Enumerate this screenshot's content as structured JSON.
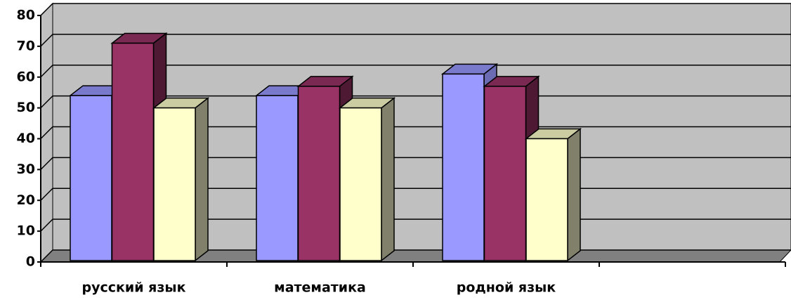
{
  "chart_data": {
    "type": "bar3d",
    "categories": [
      "русский язык",
      "математика",
      "родной язык",
      null
    ],
    "series": [
      {
        "color": "#9999ff",
        "side": "#6b6bb3",
        "top": "#7a7acc",
        "values": [
          54,
          54,
          61,
          null
        ]
      },
      {
        "color": "#993366",
        "side": "#4d1933",
        "top": "#7a2952",
        "values": [
          71,
          57,
          57,
          null
        ]
      },
      {
        "color": "#ffffcc",
        "side": "#80806b",
        "top": "#cccca3",
        "values": [
          50,
          50,
          40,
          null
        ]
      }
    ],
    "ylim": [
      0,
      80
    ],
    "yticks": [
      0,
      10,
      20,
      30,
      40,
      50,
      60,
      70,
      80
    ],
    "grid": true,
    "wall_color": "#c0c0c0",
    "floor_color": "#808080"
  }
}
